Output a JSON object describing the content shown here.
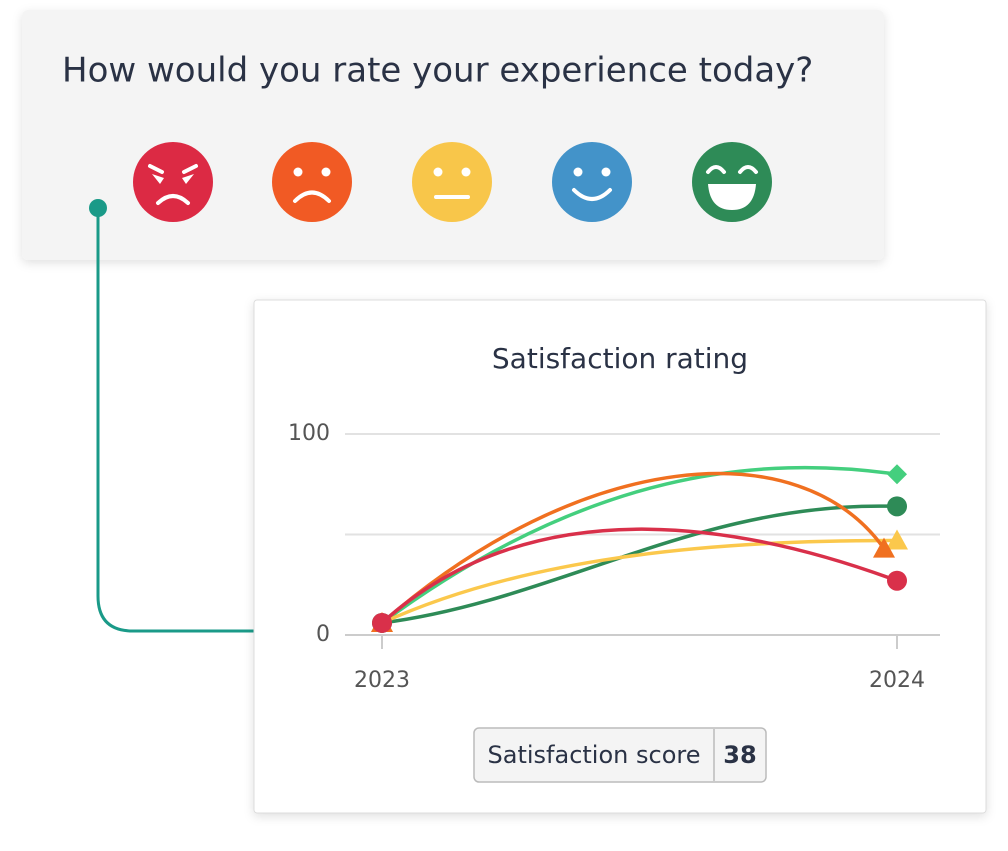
{
  "survey": {
    "question": "How would you rate your experience today?"
  },
  "chart_data": {
    "type": "line",
    "title": "Satisfaction rating",
    "categories": [
      "2023",
      "2024"
    ],
    "series": [
      {
        "color": "#44cf7e",
        "marker": "diamond",
        "values": [
          6,
          80
        ]
      },
      {
        "color": "#2e8b57",
        "marker": "circle",
        "values": [
          6,
          64
        ]
      },
      {
        "color": "#fbc84c",
        "marker": "triangle",
        "values": [
          6,
          47
        ]
      },
      {
        "color": "#f07020",
        "marker": "triangle",
        "values": [
          6,
          43
        ]
      },
      {
        "color": "#d9304a",
        "marker": "circle",
        "values": [
          6,
          27
        ]
      }
    ],
    "ylim": [
      0,
      100
    ],
    "yticks": [
      0,
      100
    ],
    "y_minor_ticks": [
      50
    ],
    "grid": true
  },
  "score": {
    "label": "Satisfaction score",
    "value": 38
  }
}
